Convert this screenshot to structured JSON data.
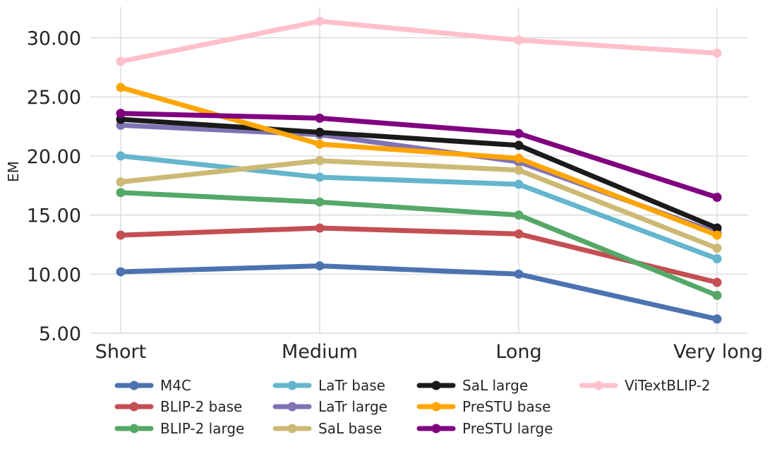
{
  "chart_data": {
    "type": "line",
    "title": "",
    "xlabel": "",
    "ylabel": "EM",
    "categories": [
      "Short",
      "Medium",
      "Long",
      "Very long"
    ],
    "yticks": [
      "5.00",
      "10.00",
      "15.00",
      "20.00",
      "25.00",
      "30.00"
    ],
    "ylim": [
      5.0,
      32.6
    ],
    "grid": true,
    "legend_position": "bottom",
    "series": [
      {
        "name": "M4C",
        "color": "#4c72b0",
        "values": [
          10.2,
          10.7,
          10.0,
          6.2
        ]
      },
      {
        "name": "BLIP-2 base",
        "color": "#c44e52",
        "values": [
          13.3,
          13.9,
          13.4,
          9.3
        ]
      },
      {
        "name": "BLIP-2 large",
        "color": "#55a868",
        "values": [
          16.9,
          16.1,
          15.0,
          8.2
        ]
      },
      {
        "name": "LaTr base",
        "color": "#64b5cd",
        "values": [
          20.0,
          18.2,
          17.6,
          11.3
        ]
      },
      {
        "name": "LaTr large",
        "color": "#8172b3",
        "values": [
          22.6,
          21.8,
          19.5,
          13.5
        ]
      },
      {
        "name": "SaL base",
        "color": "#ccb974",
        "values": [
          17.8,
          19.6,
          18.8,
          12.2
        ]
      },
      {
        "name": "SaL large",
        "color": "#1a1a1a",
        "values": [
          23.1,
          22.0,
          20.9,
          13.9
        ]
      },
      {
        "name": "PreSTU base",
        "color": "#ffa500",
        "values": [
          25.8,
          21.0,
          19.8,
          13.3
        ]
      },
      {
        "name": "PreSTU large",
        "color": "#800080",
        "values": [
          23.6,
          23.2,
          21.9,
          16.5
        ]
      },
      {
        "name": "ViTextBLIP-2",
        "color": "#ffc0cb",
        "values": [
          28.0,
          31.4,
          29.8,
          28.7
        ]
      }
    ]
  }
}
